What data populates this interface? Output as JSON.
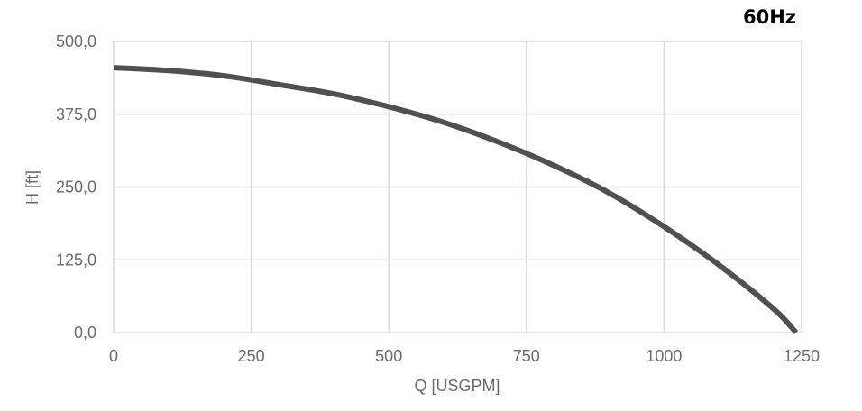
{
  "chart_data": {
    "type": "line",
    "title": "60Hz",
    "xlabel": "Q [USGPM]",
    "ylabel": "H [ft]",
    "xlim": [
      0,
      1250
    ],
    "ylim": [
      0,
      500
    ],
    "xticks": [
      "0",
      "250",
      "500",
      "750",
      "1000",
      "1250"
    ],
    "yticks": [
      "0,0",
      "125,0",
      "250,0",
      "375,0",
      "500,0"
    ],
    "grid": true,
    "series": [
      {
        "name": "",
        "color": "#505050",
        "x": [
          0,
          100,
          200,
          300,
          400,
          500,
          600,
          700,
          800,
          900,
          1000,
          1100,
          1200,
          1240
        ],
        "y": [
          455,
          450,
          441,
          426,
          410,
          388,
          361,
          327,
          287,
          240,
          182,
          116,
          40,
          0
        ]
      }
    ]
  },
  "colors": {
    "grid": "#d9d9d9",
    "axis_text": "#6b6b6b",
    "line": "#505050",
    "title": "#000000"
  }
}
